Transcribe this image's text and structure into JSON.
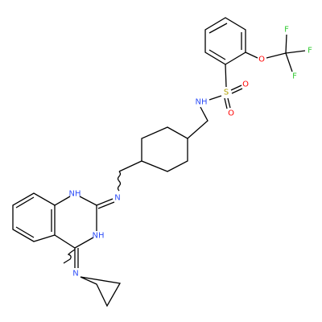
{
  "atoms": [
    "F",
    "F",
    "F",
    "O",
    "S",
    "O",
    "O",
    "NH",
    "N",
    "NH",
    "NH",
    "N"
  ]
}
